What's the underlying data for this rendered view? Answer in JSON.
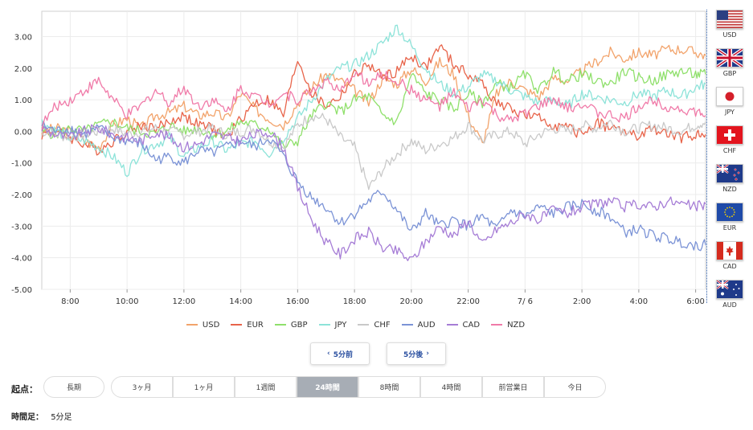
{
  "chart_data": {
    "type": "line",
    "title": "",
    "xlabel": "",
    "ylabel": "",
    "ylim": [
      -5,
      3.8
    ],
    "yticks": [
      "3.00",
      "2.00",
      "1.00",
      "0.00",
      "-1.00",
      "-2.00",
      "-3.00",
      "-4.00",
      "-5.00"
    ],
    "ytick_values": [
      3,
      2,
      1,
      0,
      -1,
      -2,
      -3,
      -4,
      -5
    ],
    "xlim": [
      0,
      23.35
    ],
    "xticks": [
      "8:00",
      "10:00",
      "12:00",
      "14:00",
      "16:00",
      "18:00",
      "20:00",
      "22:00",
      "7/ 6",
      "2:00",
      "4:00",
      "6:00"
    ],
    "xtick_values": [
      1,
      3,
      5,
      7,
      9,
      11,
      13,
      15,
      17,
      19,
      21,
      23
    ],
    "x": [
      0,
      0.5,
      1,
      1.5,
      2,
      2.5,
      3,
      3.5,
      4,
      4.5,
      5,
      5.5,
      6,
      6.5,
      7,
      7.5,
      8,
      8.5,
      9,
      9.5,
      10,
      10.5,
      11,
      11.5,
      12,
      12.5,
      13,
      13.5,
      14,
      14.5,
      15,
      15.5,
      16,
      16.5,
      17,
      17.5,
      18,
      18.5,
      19,
      19.5,
      20,
      20.5,
      21,
      21.5,
      22,
      22.5,
      23,
      23.35
    ],
    "series": [
      {
        "name": "USD",
        "color": "#f2a36b",
        "values": [
          0.0,
          0.1,
          0.0,
          -0.3,
          -0.5,
          0.2,
          0.4,
          0.1,
          0.5,
          0.6,
          0.8,
          0.5,
          0.6,
          0.4,
          1.2,
          0.7,
          0.4,
          0.2,
          0.9,
          1.4,
          1.8,
          1.6,
          1.3,
          0.9,
          1.7,
          1.5,
          2.0,
          1.6,
          2.2,
          1.8,
          0.5,
          -0.4,
          1.2,
          1.6,
          1.3,
          1.1,
          1.7,
          1.6,
          1.9,
          2.2,
          2.5,
          2.3,
          2.5,
          2.4,
          2.6,
          2.6,
          2.5,
          2.4
        ]
      },
      {
        "name": "EUR",
        "color": "#e8644a",
        "values": [
          -0.1,
          0.0,
          -0.2,
          -0.4,
          -0.6,
          -0.3,
          0.0,
          0.2,
          0.1,
          0.3,
          0.5,
          0.2,
          0.1,
          -0.2,
          0.4,
          0.9,
          1.0,
          0.5,
          2.3,
          1.2,
          0.8,
          1.1,
          1.8,
          2.1,
          1.7,
          1.9,
          2.4,
          2.0,
          2.7,
          2.1,
          1.8,
          1.5,
          0.9,
          0.7,
          0.5,
          0.4,
          0.2,
          0.1,
          -0.1,
          0.3,
          0.1,
          0.0,
          -0.2,
          0.1,
          -0.1,
          -0.2,
          -0.1,
          -0.1
        ]
      },
      {
        "name": "GBP",
        "color": "#8fe06b",
        "values": [
          0.0,
          -0.1,
          0.1,
          0.0,
          0.2,
          0.3,
          0.1,
          0.0,
          -0.1,
          0.2,
          0.0,
          0.1,
          -0.1,
          0.0,
          0.3,
          0.2,
          0.1,
          -0.5,
          -0.3,
          0.5,
          0.9,
          0.6,
          1.0,
          1.1,
          0.5,
          0.3,
          1.8,
          1.2,
          1.0,
          0.7,
          1.2,
          0.9,
          1.5,
          1.4,
          1.8,
          1.3,
          1.9,
          1.6,
          1.8,
          1.6,
          1.5,
          1.9,
          1.7,
          1.6,
          1.8,
          1.9,
          1.8,
          1.8
        ]
      },
      {
        "name": "JPY",
        "color": "#8de3d9",
        "values": [
          0.3,
          0.0,
          -0.2,
          -0.3,
          -0.5,
          -0.8,
          -1.3,
          -0.6,
          -0.4,
          -0.2,
          -0.8,
          -0.5,
          -0.3,
          -0.6,
          -0.4,
          -0.3,
          -0.7,
          -0.2,
          0.4,
          1.0,
          1.6,
          2.0,
          2.1,
          2.4,
          2.8,
          3.3,
          2.7,
          2.0,
          1.5,
          1.2,
          1.4,
          1.8,
          1.6,
          1.3,
          1.1,
          0.9,
          1.0,
          0.8,
          1.2,
          1.1,
          1.0,
          0.9,
          1.2,
          1.1,
          1.3,
          1.1,
          1.4,
          1.5
        ]
      },
      {
        "name": "CHF",
        "color": "#c9c9c9",
        "values": [
          0.0,
          -0.1,
          -0.2,
          -0.1,
          0.0,
          0.1,
          -0.1,
          0.0,
          0.1,
          0.0,
          -0.1,
          0.0,
          0.1,
          -0.1,
          0.0,
          0.1,
          -0.3,
          -0.5,
          0.2,
          0.5,
          0.4,
          -0.2,
          -0.5,
          -1.8,
          -1.2,
          -0.7,
          -0.3,
          -0.6,
          -0.4,
          -0.2,
          0.2,
          -0.3,
          -0.1,
          0.0,
          -0.4,
          -0.1,
          0.1,
          0.0,
          0.2,
          0.1,
          0.3,
          0.0,
          0.1,
          0.2,
          0.1,
          0.0,
          0.2,
          0.3
        ]
      },
      {
        "name": "AUD",
        "color": "#7b93d6",
        "values": [
          0.2,
          0.0,
          0.1,
          -0.1,
          0.1,
          -0.2,
          -0.3,
          -0.4,
          -0.9,
          -0.8,
          -1.0,
          -0.6,
          -0.7,
          -0.5,
          -0.3,
          -0.5,
          -0.2,
          -0.8,
          -1.6,
          -2.1,
          -2.4,
          -2.9,
          -2.6,
          -2.2,
          -1.9,
          -2.5,
          -3.2,
          -2.6,
          -3.0,
          -2.8,
          -3.0,
          -2.7,
          -3.1,
          -2.5,
          -2.7,
          -2.4,
          -2.6,
          -2.4,
          -2.3,
          -2.5,
          -2.7,
          -3.2,
          -3.1,
          -3.3,
          -3.4,
          -3.5,
          -3.6,
          -3.6
        ]
      },
      {
        "name": "CAD",
        "color": "#a67dd6",
        "values": [
          0.1,
          -0.1,
          -0.2,
          0.0,
          0.1,
          -0.1,
          -0.2,
          -0.3,
          0.0,
          -0.2,
          -0.5,
          -0.4,
          -0.1,
          -0.2,
          -0.3,
          -0.1,
          0.0,
          -0.5,
          -1.8,
          -2.8,
          -3.5,
          -3.9,
          -3.4,
          -3.2,
          -3.7,
          -3.8,
          -4.1,
          -3.5,
          -3.0,
          -3.3,
          -2.8,
          -3.6,
          -3.1,
          -2.9,
          -2.6,
          -2.8,
          -2.5,
          -2.6,
          -2.4,
          -2.3,
          -2.2,
          -2.4,
          -2.3,
          -2.4,
          -2.2,
          -2.3,
          -2.4,
          -2.3
        ]
      },
      {
        "name": "NZD",
        "color": "#f07aa8",
        "values": [
          0.2,
          0.8,
          1.0,
          1.3,
          1.6,
          1.0,
          0.5,
          0.8,
          1.3,
          0.9,
          1.4,
          0.8,
          1.0,
          0.6,
          1.4,
          1.1,
          0.9,
          1.2,
          1.0,
          1.3,
          1.6,
          1.2,
          1.9,
          1.5,
          1.8,
          1.6,
          1.3,
          1.0,
          0.8,
          1.2,
          0.7,
          1.0,
          0.5,
          0.3,
          0.6,
          0.8,
          1.0,
          0.7,
          0.9,
          0.6,
          0.5,
          0.4,
          0.8,
          1.0,
          0.8,
          0.7,
          0.6,
          0.5
        ]
      }
    ]
  },
  "flags": [
    {
      "code": "USD"
    },
    {
      "code": "GBP"
    },
    {
      "code": "JPY"
    },
    {
      "code": "CHF"
    },
    {
      "code": "NZD"
    },
    {
      "code": "EUR"
    },
    {
      "code": "CAD"
    },
    {
      "code": "AUD"
    }
  ],
  "nav": {
    "prev_label": "5分前",
    "next_label": "5分後",
    "prev_arrow": "‹",
    "next_arrow": "›"
  },
  "origin": {
    "label": "起点："
  },
  "ranges": [
    "長期",
    "3ヶ月",
    "1ヶ月",
    "1週間",
    "24時間",
    "8時間",
    "4時間",
    "前営業日",
    "今日"
  ],
  "active_range": "24時間",
  "timeframe": {
    "label": "時間足：",
    "value": "5分足"
  }
}
